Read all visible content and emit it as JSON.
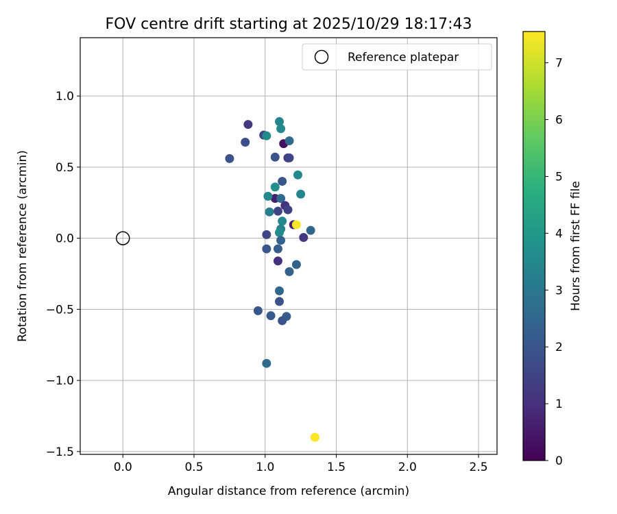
{
  "chart_data": {
    "type": "scatter",
    "title": "FOV centre drift starting at 2025/10/29 18:17:43",
    "xlabel": "Angular distance from reference (arcmin)",
    "ylabel": "Rotation from reference (arcmin)",
    "xlim": [
      -0.3,
      2.63
    ],
    "ylim": [
      -1.52,
      1.41
    ],
    "xticks": [
      0.0,
      0.5,
      1.0,
      1.5,
      2.0,
      2.5
    ],
    "xtick_labels": [
      "0.0",
      "0.5",
      "1.0",
      "1.5",
      "2.0",
      "2.5"
    ],
    "yticks": [
      1.0,
      0.5,
      0.0,
      -0.5,
      -1.0,
      -1.5
    ],
    "ytick_labels": [
      "1.0",
      "0.5",
      "0.0",
      "−0.5",
      "−1.0",
      "−1.5"
    ],
    "grid": true,
    "legend": {
      "label": "Reference platepar",
      "placement": "top-right"
    },
    "reference_point": {
      "x": 0.0,
      "y": 0.0,
      "label": "Reference platepar"
    },
    "colorbar": {
      "label": "Hours from first FF file",
      "colormap": "viridis",
      "range": [
        0,
        7.55
      ],
      "ticks": [
        0,
        1,
        2,
        3,
        4,
        5,
        6,
        7
      ],
      "tick_labels": [
        "0",
        "1",
        "2",
        "3",
        "4",
        "5",
        "6",
        "7"
      ]
    },
    "points": [
      {
        "x": 0.88,
        "y": 0.8,
        "h": 1.2
      },
      {
        "x": 0.86,
        "y": 0.675,
        "h": 1.8
      },
      {
        "x": 0.75,
        "y": 0.56,
        "h": 1.9
      },
      {
        "x": 0.99,
        "y": 0.725,
        "h": 1.5
      },
      {
        "x": 1.01,
        "y": 0.72,
        "h": 3.6
      },
      {
        "x": 1.1,
        "y": 0.82,
        "h": 3.4
      },
      {
        "x": 1.11,
        "y": 0.77,
        "h": 3.5
      },
      {
        "x": 1.13,
        "y": 0.665,
        "h": 0.3
      },
      {
        "x": 1.17,
        "y": 0.685,
        "h": 2.6
      },
      {
        "x": 1.07,
        "y": 0.57,
        "h": 1.9
      },
      {
        "x": 1.16,
        "y": 0.565,
        "h": 1.1
      },
      {
        "x": 1.17,
        "y": 0.565,
        "h": 1.6
      },
      {
        "x": 1.23,
        "y": 0.445,
        "h": 3.5
      },
      {
        "x": 1.12,
        "y": 0.4,
        "h": 2.0
      },
      {
        "x": 1.07,
        "y": 0.36,
        "h": 3.7
      },
      {
        "x": 1.25,
        "y": 0.31,
        "h": 3.4
      },
      {
        "x": 1.07,
        "y": 0.28,
        "h": 0.6
      },
      {
        "x": 1.02,
        "y": 0.295,
        "h": 3.5
      },
      {
        "x": 1.11,
        "y": 0.28,
        "h": 2.6
      },
      {
        "x": 1.14,
        "y": 0.23,
        "h": 1.0
      },
      {
        "x": 1.16,
        "y": 0.2,
        "h": 1.4
      },
      {
        "x": 1.09,
        "y": 0.19,
        "h": 1.5
      },
      {
        "x": 1.03,
        "y": 0.185,
        "h": 3.2
      },
      {
        "x": 1.12,
        "y": 0.12,
        "h": 3.5
      },
      {
        "x": 1.2,
        "y": 0.095,
        "h": 0.7
      },
      {
        "x": 1.22,
        "y": 0.095,
        "h": 7.5
      },
      {
        "x": 1.11,
        "y": 0.065,
        "h": 3.3
      },
      {
        "x": 1.1,
        "y": 0.04,
        "h": 3.6
      },
      {
        "x": 1.32,
        "y": 0.055,
        "h": 2.5
      },
      {
        "x": 1.01,
        "y": 0.025,
        "h": 1.6
      },
      {
        "x": 1.27,
        "y": 0.005,
        "h": 1.2
      },
      {
        "x": 1.11,
        "y": -0.015,
        "h": 2.4
      },
      {
        "x": 1.01,
        "y": -0.075,
        "h": 2.0
      },
      {
        "x": 1.09,
        "y": -0.075,
        "h": 2.2
      },
      {
        "x": 1.09,
        "y": -0.16,
        "h": 1.0
      },
      {
        "x": 1.22,
        "y": -0.185,
        "h": 2.4
      },
      {
        "x": 1.17,
        "y": -0.235,
        "h": 2.4
      },
      {
        "x": 1.1,
        "y": -0.37,
        "h": 2.5
      },
      {
        "x": 1.1,
        "y": -0.445,
        "h": 1.9
      },
      {
        "x": 0.95,
        "y": -0.51,
        "h": 2.0
      },
      {
        "x": 1.04,
        "y": -0.545,
        "h": 2.1
      },
      {
        "x": 1.15,
        "y": -0.55,
        "h": 2.2
      },
      {
        "x": 1.12,
        "y": -0.58,
        "h": 1.9
      },
      {
        "x": 1.01,
        "y": -0.88,
        "h": 2.6
      },
      {
        "x": 1.35,
        "y": -1.4,
        "h": 7.5
      }
    ]
  }
}
